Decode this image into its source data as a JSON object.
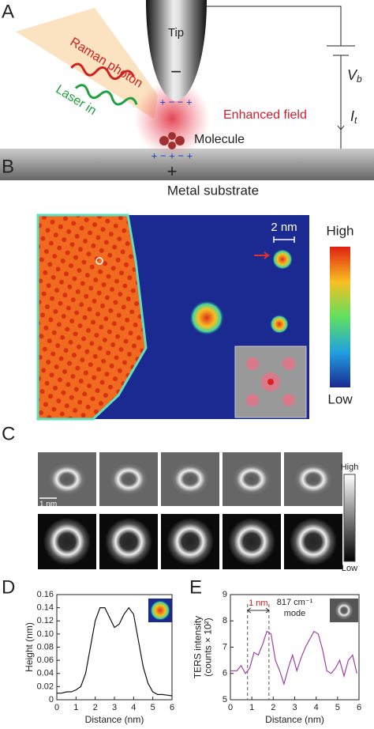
{
  "panel_a": {
    "label": "A",
    "tip": "Tip",
    "tip_charge": "−",
    "tip_induced": "+ − − +",
    "raman": "Raman photon",
    "laser": "Laser in",
    "field": "Enhanced field",
    "molecule": "Molecule",
    "substrate_induced": "+ − + − +",
    "substrate_charge": "+",
    "substrate": "Metal substrate",
    "voltage": {
      "symbol": "V",
      "subscript": "b"
    },
    "current": {
      "symbol": "I",
      "subscript": "t"
    }
  },
  "panel_b": {
    "label": "B",
    "scale": "2 nm",
    "high": "High",
    "low": "Low"
  },
  "panel_c": {
    "label": "C",
    "scale": "1 nm",
    "high": "High",
    "low": "Low"
  },
  "chart_data": [
    {
      "type": "line",
      "label": "D",
      "xlabel": "Distance (nm)",
      "ylabel": "Height (nm)",
      "xlim": [
        0,
        6
      ],
      "ylim": [
        0,
        0.16
      ],
      "xticks": [
        0,
        1,
        2,
        3,
        4,
        5,
        6
      ],
      "yticks": [
        0,
        0.02,
        0.04,
        0.06,
        0.08,
        {
          "value": 0.1,
          "label": "0.10"
        },
        0.12,
        0.14,
        0.16
      ],
      "x": [
        0,
        0.25,
        0.5,
        0.75,
        1,
        1.25,
        1.5,
        1.75,
        2,
        2.25,
        2.5,
        2.75,
        3,
        3.25,
        3.5,
        3.75,
        4,
        4.25,
        4.5,
        4.75,
        5,
        5.25,
        5.5,
        5.75,
        6
      ],
      "series": [
        {
          "color": "#111111",
          "values": [
            0.01,
            0.01,
            0.012,
            0.012,
            0.015,
            0.02,
            0.04,
            0.08,
            0.12,
            0.14,
            0.14,
            0.125,
            0.11,
            0.115,
            0.13,
            0.14,
            0.13,
            0.09,
            0.05,
            0.025,
            0.012,
            0.008,
            0.008,
            0.007,
            0.006
          ]
        }
      ]
    },
    {
      "type": "line",
      "label": "E",
      "xlabel": "Distance (nm)",
      "ylabel": [
        "TERS intensity",
        "(counts × 10²)"
      ],
      "xlim": [
        0,
        6
      ],
      "ylim": [
        5,
        9
      ],
      "xticks": [
        0,
        1,
        2,
        3,
        4,
        5,
        6
      ],
      "yticks": [
        5,
        6,
        7,
        8,
        9
      ],
      "annotation": "1 nm",
      "mode": [
        "817 cm⁻¹",
        "mode"
      ],
      "vlines": [
        0.8,
        1.8
      ],
      "x": [
        0,
        0.3,
        0.5,
        0.7,
        0.9,
        1.1,
        1.3,
        1.5,
        1.7,
        1.9,
        2.1,
        2.3,
        2.5,
        2.7,
        2.9,
        3.1,
        3.3,
        3.5,
        3.7,
        3.9,
        4.1,
        4.3,
        4.5,
        4.7,
        4.9,
        5.1,
        5.3,
        5.5,
        5.7,
        5.9
      ],
      "series": [
        {
          "color": "#a040a8",
          "values": [
            6.1,
            6.1,
            6.3,
            6.0,
            6.2,
            6.8,
            6.7,
            7.1,
            7.6,
            7.5,
            6.5,
            6.1,
            5.6,
            6.2,
            6.7,
            6.1,
            6.6,
            7.0,
            7.3,
            7.6,
            7.5,
            6.9,
            6.1,
            6.0,
            6.2,
            6.5,
            5.9,
            6.5,
            6.7,
            6.0
          ]
        }
      ]
    }
  ]
}
